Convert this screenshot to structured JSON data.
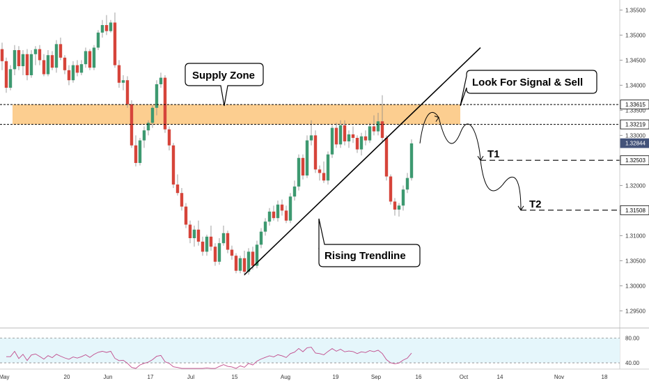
{
  "chart_data": {
    "type": "candlestick",
    "price_axis": {
      "range": [
        1.292,
        1.357
      ],
      "ticks": [
        "1.35500",
        "1.35000",
        "1.34500",
        "1.34000",
        "1.33500",
        "1.33000",
        "1.32500",
        "1.32000",
        "1.31500",
        "1.31000",
        "1.30500",
        "1.30000",
        "1.29500"
      ]
    },
    "time_axis": {
      "ticks": [
        "May",
        "20",
        "Jun",
        "17",
        "Jul",
        "15",
        "Aug",
        "19",
        "Sep",
        "16",
        "Oct",
        "14",
        "Nov",
        "18"
      ]
    },
    "candles": [
      [
        1.3472,
        1.3485,
        1.343,
        1.3448
      ],
      [
        1.3448,
        1.3455,
        1.3385,
        1.3395
      ],
      [
        1.3395,
        1.344,
        1.339,
        1.3432
      ],
      [
        1.3432,
        1.348,
        1.342,
        1.347
      ],
      [
        1.347,
        1.3478,
        1.343,
        1.3438
      ],
      [
        1.3438,
        1.347,
        1.342,
        1.3462
      ],
      [
        1.3462,
        1.3472,
        1.341,
        1.342
      ],
      [
        1.342,
        1.347,
        1.3415,
        1.3462
      ],
      [
        1.3462,
        1.3478,
        1.344,
        1.3472
      ],
      [
        1.3472,
        1.348,
        1.344,
        1.345
      ],
      [
        1.345,
        1.3462,
        1.3418,
        1.3422
      ],
      [
        1.3422,
        1.347,
        1.3418,
        1.346
      ],
      [
        1.346,
        1.3468,
        1.343,
        1.3435
      ],
      [
        1.3435,
        1.349,
        1.3425,
        1.3482
      ],
      [
        1.3482,
        1.3495,
        1.345,
        1.3455
      ],
      [
        1.3455,
        1.346,
        1.3422,
        1.343
      ],
      [
        1.343,
        1.344,
        1.34,
        1.341
      ],
      [
        1.341,
        1.3448,
        1.3405,
        1.344
      ],
      [
        1.344,
        1.345,
        1.3418,
        1.3425
      ],
      [
        1.3425,
        1.345,
        1.342,
        1.3442
      ],
      [
        1.3442,
        1.3475,
        1.3435,
        1.3468
      ],
      [
        1.3468,
        1.3472,
        1.343,
        1.3435
      ],
      [
        1.3435,
        1.348,
        1.343,
        1.3475
      ],
      [
        1.3475,
        1.351,
        1.347,
        1.3505
      ],
      [
        1.3505,
        1.353,
        1.3495,
        1.352
      ],
      [
        1.352,
        1.354,
        1.35,
        1.3508
      ],
      [
        1.3508,
        1.353,
        1.3505,
        1.3525
      ],
      [
        1.3525,
        1.3545,
        1.3435,
        1.344
      ],
      [
        1.344,
        1.345,
        1.3395,
        1.3405
      ],
      [
        1.3405,
        1.342,
        1.339,
        1.341
      ],
      [
        1.341,
        1.3418,
        1.3355,
        1.3362
      ],
      [
        1.3362,
        1.337,
        1.3275,
        1.328
      ],
      [
        1.328,
        1.33,
        1.3238,
        1.3245
      ],
      [
        1.3245,
        1.3295,
        1.324,
        1.329
      ],
      [
        1.329,
        1.3318,
        1.3275,
        1.331
      ],
      [
        1.331,
        1.333,
        1.33,
        1.3325
      ],
      [
        1.3325,
        1.336,
        1.3315,
        1.3355
      ],
      [
        1.3355,
        1.341,
        1.334,
        1.3402
      ],
      [
        1.3402,
        1.3425,
        1.3395,
        1.3415
      ],
      [
        1.3415,
        1.342,
        1.3305,
        1.3312
      ],
      [
        1.3312,
        1.3318,
        1.327,
        1.328
      ],
      [
        1.328,
        1.3285,
        1.3195,
        1.3202
      ],
      [
        1.3202,
        1.3222,
        1.318,
        1.3185
      ],
      [
        1.3185,
        1.3195,
        1.315,
        1.3158
      ],
      [
        1.3158,
        1.3165,
        1.3115,
        1.3122
      ],
      [
        1.3122,
        1.313,
        1.3085,
        1.3095
      ],
      [
        1.3095,
        1.312,
        1.3078,
        1.3112
      ],
      [
        1.3112,
        1.313,
        1.308,
        1.3088
      ],
      [
        1.3088,
        1.3098,
        1.306,
        1.3068
      ],
      [
        1.3068,
        1.3102,
        1.306,
        1.3098
      ],
      [
        1.3098,
        1.312,
        1.307,
        1.3078
      ],
      [
        1.3078,
        1.3085,
        1.304,
        1.3048
      ],
      [
        1.3048,
        1.3095,
        1.3042,
        1.3085
      ],
      [
        1.3085,
        1.312,
        1.308,
        1.3105
      ],
      [
        1.3105,
        1.311,
        1.3065,
        1.3072
      ],
      [
        1.3072,
        1.308,
        1.3052,
        1.306
      ],
      [
        1.306,
        1.3065,
        1.3025,
        1.303
      ],
      [
        1.303,
        1.306,
        1.3025,
        1.3055
      ],
      [
        1.3055,
        1.307,
        1.302,
        1.3028
      ],
      [
        1.3028,
        1.3075,
        1.3022,
        1.3068
      ],
      [
        1.3068,
        1.3078,
        1.3032,
        1.304
      ],
      [
        1.304,
        1.309,
        1.3035,
        1.3082
      ],
      [
        1.3082,
        1.3115,
        1.3075,
        1.3108
      ],
      [
        1.3108,
        1.3135,
        1.31,
        1.3128
      ],
      [
        1.3128,
        1.3155,
        1.312,
        1.3148
      ],
      [
        1.3148,
        1.316,
        1.313,
        1.3135
      ],
      [
        1.3135,
        1.317,
        1.3128,
        1.3162
      ],
      [
        1.3162,
        1.3172,
        1.314,
        1.315
      ],
      [
        1.315,
        1.316,
        1.3125,
        1.313
      ],
      [
        1.313,
        1.3185,
        1.3125,
        1.3178
      ],
      [
        1.3178,
        1.321,
        1.317,
        1.3198
      ],
      [
        1.3198,
        1.3262,
        1.319,
        1.3255
      ],
      [
        1.3255,
        1.3262,
        1.3212,
        1.322
      ],
      [
        1.322,
        1.33,
        1.3215,
        1.329
      ],
      [
        1.329,
        1.333,
        1.328,
        1.33
      ],
      [
        1.33,
        1.331,
        1.3225,
        1.3232
      ],
      [
        1.3232,
        1.324,
        1.321,
        1.3225
      ],
      [
        1.3225,
        1.3248,
        1.3205,
        1.321
      ],
      [
        1.321,
        1.3268,
        1.3202,
        1.3262
      ],
      [
        1.3262,
        1.332,
        1.3255,
        1.3315
      ],
      [
        1.3315,
        1.3325,
        1.3275,
        1.3282
      ],
      [
        1.3282,
        1.333,
        1.3275,
        1.332
      ],
      [
        1.332,
        1.333,
        1.328,
        1.3288
      ],
      [
        1.3288,
        1.331,
        1.3275,
        1.3302
      ],
      [
        1.3302,
        1.3318,
        1.3285,
        1.3295
      ],
      [
        1.3295,
        1.33,
        1.3265,
        1.3272
      ],
      [
        1.3272,
        1.3305,
        1.326,
        1.3298
      ],
      [
        1.3298,
        1.331,
        1.328,
        1.329
      ],
      [
        1.329,
        1.3325,
        1.3285,
        1.3318
      ],
      [
        1.3318,
        1.334,
        1.33,
        1.3308
      ],
      [
        1.3308,
        1.3345,
        1.33,
        1.3328
      ],
      [
        1.3328,
        1.338,
        1.3285,
        1.3295
      ],
      [
        1.3295,
        1.33,
        1.321,
        1.3218
      ],
      [
        1.3218,
        1.3222,
        1.3162,
        1.3168
      ],
      [
        1.3168,
        1.3175,
        1.314,
        1.3152
      ],
      [
        1.3152,
        1.3165,
        1.3138,
        1.316
      ],
      [
        1.316,
        1.32,
        1.315,
        1.3192
      ],
      [
        1.3192,
        1.3225,
        1.3185,
        1.3215
      ],
      [
        1.3215,
        1.3292,
        1.321,
        1.3284
      ]
    ],
    "supply_zone": {
      "low": 1.33219,
      "high": 1.33615
    },
    "rising_trendline": {
      "start": {
        "bar": 58,
        "price": 1.3022
      },
      "end": {
        "bar": 107,
        "price": 1.345
      }
    },
    "price_labels": [
      {
        "value": "1.33615",
        "price": 1.33615,
        "style": "level",
        "color": "#000000"
      },
      {
        "value": "1.33219",
        "price": 1.33219,
        "style": "level",
        "color": "#000000"
      },
      {
        "value": "1.32844",
        "price": 1.32844,
        "style": "current",
        "color": "#43537a"
      },
      {
        "value": "1.32503",
        "price": 1.32503,
        "style": "level",
        "color": "#000000"
      },
      {
        "value": "1.31508",
        "price": 1.31508,
        "style": "level",
        "color": "#000000"
      }
    ],
    "annotations": {
      "supply_zone": "Supply Zone",
      "signal": "Look For Signal & Sell",
      "trendline": "Rising Trendline"
    },
    "targets": {
      "t1": "T1",
      "t2": "T2"
    },
    "oscillator": {
      "range": [
        30,
        95
      ],
      "upper_band": 80.0,
      "lower_band": 40.0,
      "tick_labels": [
        "80.00",
        "40.00"
      ],
      "line_color": "#c04a8b",
      "band_fill": "#e5f6fb"
    },
    "colors": {
      "up": "#3d9970",
      "down": "#d6443a",
      "zone": "#fcc57d",
      "background": "#ffffff"
    }
  }
}
